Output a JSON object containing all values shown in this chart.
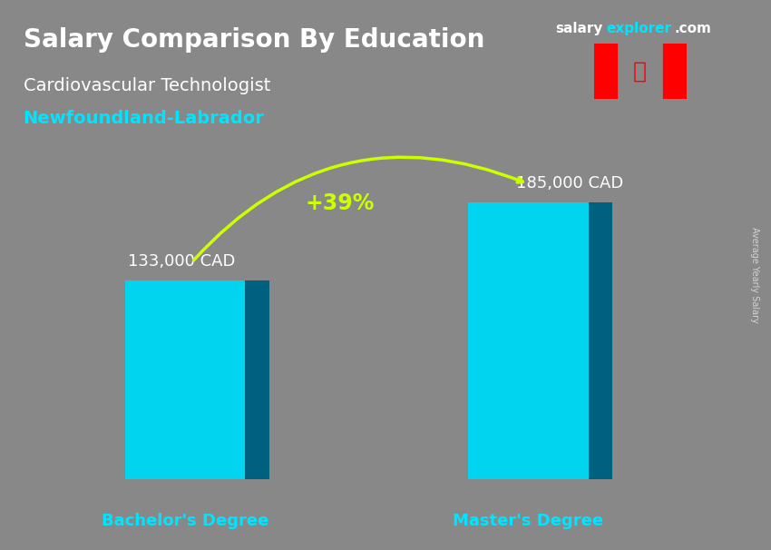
{
  "title_main": "Salary Comparison By Education",
  "title_sub": "Cardiovascular Technologist",
  "region": "Newfoundland-Labrador",
  "categories": [
    "Bachelor's Degree",
    "Master's Degree"
  ],
  "values": [
    133000,
    185000
  ],
  "value_labels": [
    "133,000 CAD",
    "185,000 CAD"
  ],
  "pct_change": "+39%",
  "bar_color_top": "#00e5ff",
  "bar_color_mid": "#00b8d4",
  "bar_color_bottom": "#0097a7",
  "bar_color_face": "#00d4e8",
  "background_color": "#888888",
  "title_color": "#ffffff",
  "subtitle_color": "#ffffff",
  "region_color": "#00e5ff",
  "value_label_color": "#ffffff",
  "xlabel_color": "#00e5ff",
  "pct_color": "#ccff00",
  "watermark": "salaryexplorer.com",
  "side_label": "Average Yearly Salary",
  "ylim": [
    0,
    230000
  ],
  "bar_width": 0.35,
  "figsize": [
    8.5,
    6.06
  ],
  "dpi": 100
}
